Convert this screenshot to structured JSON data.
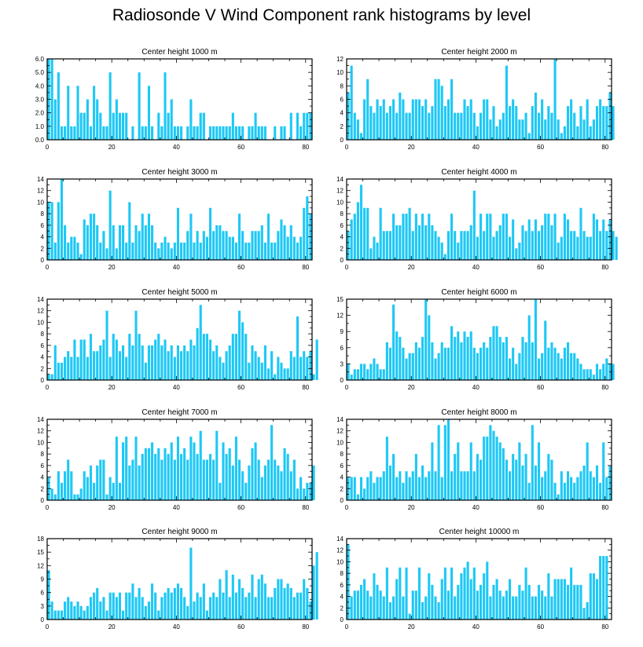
{
  "title": "Radiosonde V Wind Component rank histograms by level",
  "bar_color": "#1ec8f5",
  "chart_data": [
    {
      "type": "bar",
      "title": "Center height 1000 m",
      "xlim": [
        0,
        82
      ],
      "xticks": [
        0,
        20,
        40,
        60,
        80
      ],
      "ylim": [
        0,
        6
      ],
      "yticks": [
        0,
        1,
        2,
        3,
        4,
        5,
        6
      ],
      "ytick_labels": [
        "0.0",
        "1.0",
        "2.0",
        "3.0",
        "4.0",
        "5.0",
        "6.0"
      ],
      "values": [
        6,
        6,
        3,
        5,
        1,
        1,
        4,
        1,
        1,
        4,
        2,
        2,
        3,
        1,
        4,
        3,
        2,
        1,
        1,
        5,
        2,
        3,
        2,
        2,
        2,
        0,
        1,
        0,
        5,
        1,
        1,
        4,
        1,
        0,
        2,
        1,
        5,
        2,
        3,
        1,
        1,
        1,
        0,
        1,
        3,
        1,
        1,
        2,
        2,
        0,
        1,
        1,
        1,
        1,
        1,
        1,
        1,
        2,
        1,
        1,
        1,
        0,
        1,
        1,
        2,
        1,
        1,
        1,
        0,
        0,
        1,
        0,
        1,
        1,
        0,
        2,
        0,
        2,
        1,
        2,
        2,
        2
      ]
    },
    {
      "type": "bar",
      "title": "Center height 2000 m",
      "xlim": [
        0,
        82
      ],
      "xticks": [
        0,
        20,
        40,
        60,
        80
      ],
      "ylim": [
        0,
        12
      ],
      "yticks": [
        0,
        2,
        4,
        6,
        8,
        10,
        12
      ],
      "ytick_labels": [
        "0",
        "2",
        "4",
        "6",
        "8",
        "10",
        "12"
      ],
      "values": [
        7,
        11,
        4,
        3,
        1,
        6,
        9,
        5,
        4,
        6,
        5,
        6,
        4,
        5,
        6,
        4,
        7,
        6,
        4,
        4,
        6,
        6,
        6,
        5,
        6,
        4,
        5,
        9,
        9,
        8,
        5,
        6,
        9,
        4,
        4,
        4,
        6,
        5,
        6,
        4,
        2,
        4,
        6,
        6,
        3,
        5,
        2,
        3,
        4,
        11,
        5,
        6,
        5,
        3,
        3,
        4,
        1,
        5,
        7,
        4,
        6,
        3,
        5,
        4,
        12,
        3,
        1,
        2,
        5,
        6,
        4,
        2,
        5,
        3,
        6,
        2,
        3,
        5,
        6,
        5,
        5,
        7,
        5
      ]
    },
    {
      "type": "bar",
      "title": "Center height 3000 m",
      "xlim": [
        0,
        82
      ],
      "xticks": [
        0,
        20,
        40,
        60,
        80
      ],
      "ylim": [
        0,
        14
      ],
      "yticks": [
        0,
        2,
        4,
        6,
        8,
        10,
        12,
        14
      ],
      "ytick_labels": [
        "0",
        "2",
        "4",
        "6",
        "8",
        "10",
        "12",
        "14"
      ],
      "values": [
        10,
        10,
        3,
        10,
        14,
        6,
        3,
        4,
        4,
        3,
        1,
        7,
        6,
        8,
        8,
        6,
        3,
        5,
        2,
        12,
        6,
        2,
        6,
        6,
        3,
        10,
        3,
        6,
        5,
        8,
        6,
        8,
        6,
        3,
        2,
        3,
        4,
        3,
        2,
        3,
        9,
        3,
        3,
        5,
        8,
        3,
        5,
        3,
        5,
        4,
        9,
        5,
        6,
        6,
        5,
        5,
        4,
        4,
        3,
        8,
        5,
        3,
        3,
        5,
        5,
        5,
        6,
        3,
        8,
        3,
        3,
        5,
        7,
        6,
        4,
        6,
        4,
        3,
        4,
        9,
        11,
        8
      ]
    },
    {
      "type": "bar",
      "title": "Center height 4000 m",
      "xlim": [
        0,
        82
      ],
      "xticks": [
        0,
        20,
        40,
        60,
        80
      ],
      "ylim": [
        0,
        14
      ],
      "yticks": [
        0,
        2,
        4,
        6,
        8,
        10,
        12,
        14
      ],
      "ytick_labels": [
        "0",
        "2",
        "4",
        "6",
        "8",
        "10",
        "12",
        "14"
      ],
      "values": [
        5,
        7,
        8,
        10,
        13,
        9,
        9,
        2,
        4,
        3,
        9,
        5,
        5,
        5,
        8,
        6,
        6,
        8,
        8,
        9,
        5,
        8,
        6,
        8,
        6,
        8,
        6,
        5,
        4,
        3,
        1,
        5,
        8,
        5,
        3,
        5,
        5,
        5,
        6,
        12,
        4,
        8,
        5,
        8,
        8,
        4,
        5,
        6,
        8,
        8,
        4,
        7,
        2,
        3,
        6,
        5,
        7,
        5,
        7,
        5,
        6,
        8,
        8,
        6,
        8,
        3,
        4,
        8,
        7,
        5,
        5,
        4,
        9,
        5,
        4,
        4,
        8,
        7,
        5,
        7,
        5,
        7,
        5,
        4
      ]
    },
    {
      "type": "bar",
      "title": "Center height 5000 m",
      "xlim": [
        0,
        82
      ],
      "xticks": [
        0,
        20,
        40,
        60,
        80
      ],
      "ylim": [
        0,
        14
      ],
      "yticks": [
        0,
        2,
        4,
        6,
        8,
        10,
        12,
        14
      ],
      "ytick_labels": [
        "0",
        "2",
        "4",
        "6",
        "8",
        "10",
        "12",
        "14"
      ],
      "values": [
        1,
        1,
        6,
        3,
        3,
        4,
        5,
        4,
        7,
        4,
        7,
        7,
        4,
        8,
        5,
        5,
        6,
        7,
        12,
        4,
        8,
        7,
        5,
        6,
        4,
        8,
        6,
        12,
        8,
        6,
        3,
        6,
        6,
        7,
        8,
        6,
        7,
        5,
        6,
        4,
        6,
        5,
        6,
        5,
        7,
        6,
        9,
        13,
        8,
        8,
        7,
        5,
        6,
        4,
        3,
        5,
        6,
        8,
        8,
        12,
        10,
        8,
        3,
        6,
        5,
        4,
        3,
        6,
        2,
        5,
        1,
        4,
        3,
        2,
        2,
        5,
        4,
        11,
        4,
        5,
        4,
        5,
        1,
        7
      ]
    },
    {
      "type": "bar",
      "title": "Center height 6000 m",
      "xlim": [
        0,
        82
      ],
      "xticks": [
        0,
        20,
        40,
        60,
        80
      ],
      "ylim": [
        0,
        15
      ],
      "yticks": [
        0,
        3,
        6,
        9,
        12,
        15
      ],
      "ytick_labels": [
        "0",
        "3",
        "6",
        "9",
        "12",
        "15"
      ],
      "values": [
        3,
        1,
        2,
        2,
        3,
        3,
        2,
        3,
        4,
        3,
        2,
        2,
        7,
        6,
        14,
        9,
        8,
        6,
        4,
        5,
        5,
        7,
        6,
        8,
        15,
        12,
        7,
        4,
        5,
        7,
        6,
        6,
        10,
        8,
        9,
        7,
        9,
        8,
        9,
        6,
        5,
        6,
        7,
        6,
        8,
        10,
        10,
        8,
        7,
        8,
        4,
        6,
        3,
        5,
        8,
        7,
        12,
        7,
        15,
        4,
        5,
        11,
        6,
        7,
        6,
        5,
        4,
        6,
        7,
        5,
        5,
        4,
        3,
        2,
        2,
        2,
        1,
        3,
        2,
        3,
        4,
        3,
        3
      ]
    },
    {
      "type": "bar",
      "title": "Center height 7000 m",
      "xlim": [
        0,
        82
      ],
      "xticks": [
        0,
        20,
        40,
        60,
        80
      ],
      "ylim": [
        0,
        14
      ],
      "yticks": [
        0,
        2,
        4,
        6,
        8,
        10,
        12,
        14
      ],
      "ytick_labels": [
        "0",
        "2",
        "4",
        "6",
        "8",
        "10",
        "12",
        "14"
      ],
      "values": [
        4,
        2,
        1,
        5,
        3,
        5,
        7,
        5,
        1,
        1,
        2,
        5,
        4,
        6,
        3,
        6,
        7,
        7,
        1,
        4,
        3,
        11,
        3,
        10,
        11,
        6,
        7,
        11,
        6,
        8,
        9,
        9,
        10,
        8,
        9,
        7,
        9,
        8,
        10,
        7,
        11,
        8,
        9,
        7,
        11,
        10,
        8,
        12,
        7,
        7,
        8,
        7,
        12,
        3,
        10,
        8,
        9,
        6,
        11,
        7,
        5,
        3,
        6,
        9,
        10,
        7,
        4,
        6,
        7,
        13,
        7,
        6,
        5,
        9,
        8,
        5,
        7,
        2,
        4,
        2,
        3,
        3,
        6
      ]
    },
    {
      "type": "bar",
      "title": "Center height 8000 m",
      "xlim": [
        0,
        82
      ],
      "xticks": [
        0,
        20,
        40,
        60,
        80
      ],
      "ylim": [
        0,
        14
      ],
      "yticks": [
        0,
        2,
        4,
        6,
        8,
        10,
        12,
        14
      ],
      "ytick_labels": [
        "0",
        "2",
        "4",
        "6",
        "8",
        "10",
        "12",
        "14"
      ],
      "values": [
        4,
        4,
        4,
        1,
        4,
        2,
        4,
        5,
        3,
        4,
        4,
        5,
        11,
        6,
        8,
        4,
        5,
        3,
        5,
        4,
        5,
        8,
        4,
        6,
        4,
        5,
        10,
        5,
        13,
        4,
        13,
        14,
        5,
        8,
        10,
        5,
        5,
        5,
        10,
        5,
        8,
        7,
        11,
        11,
        13,
        12,
        11,
        10,
        9,
        7,
        5,
        8,
        7,
        10,
        6,
        8,
        3,
        13,
        6,
        10,
        4,
        5,
        8,
        7,
        3,
        1,
        5,
        3,
        5,
        4,
        3,
        4,
        5,
        6,
        10,
        5,
        4,
        6,
        3,
        10,
        4,
        6
      ]
    },
    {
      "type": "bar",
      "title": "Center height 9000 m",
      "xlim": [
        0,
        82
      ],
      "xticks": [
        0,
        20,
        40,
        60,
        80
      ],
      "ylim": [
        0,
        18
      ],
      "yticks": [
        0,
        3,
        6,
        9,
        12,
        15,
        18
      ],
      "ytick_labels": [
        "0",
        "3",
        "6",
        "9",
        "12",
        "15",
        "18"
      ],
      "values": [
        11,
        4,
        2,
        2,
        2,
        4,
        5,
        4,
        3,
        4,
        3,
        2,
        3,
        5,
        6,
        7,
        4,
        5,
        2,
        6,
        6,
        5,
        6,
        2,
        6,
        6,
        8,
        5,
        7,
        5,
        3,
        4,
        8,
        6,
        2,
        5,
        6,
        7,
        6,
        7,
        8,
        7,
        5,
        3,
        16,
        4,
        6,
        5,
        8,
        2,
        5,
        6,
        5,
        9,
        6,
        11,
        5,
        10,
        6,
        9,
        7,
        5,
        6,
        10,
        5,
        9,
        10,
        8,
        5,
        5,
        7,
        9,
        9,
        7,
        8,
        7,
        5,
        6,
        6,
        9,
        7,
        4,
        12,
        15
      ]
    },
    {
      "type": "bar",
      "title": "Center height 10000 m",
      "xlim": [
        0,
        82
      ],
      "xticks": [
        0,
        20,
        40,
        60,
        80
      ],
      "ylim": [
        0,
        14
      ],
      "yticks": [
        0,
        2,
        4,
        6,
        8,
        10,
        12,
        14
      ],
      "ytick_labels": [
        "0",
        "2",
        "4",
        "6",
        "8",
        "10",
        "12",
        "14"
      ],
      "values": [
        13,
        4,
        5,
        5,
        6,
        7,
        5,
        4,
        8,
        6,
        5,
        4,
        9,
        3,
        4,
        7,
        9,
        4,
        9,
        1,
        5,
        5,
        9,
        3,
        4,
        8,
        6,
        4,
        3,
        7,
        9,
        5,
        9,
        4,
        6,
        8,
        9,
        10,
        7,
        9,
        5,
        6,
        8,
        10,
        4,
        6,
        7,
        5,
        4,
        5,
        7,
        4,
        4,
        6,
        5,
        9,
        6,
        4,
        4,
        6,
        5,
        4,
        8,
        4,
        7,
        7,
        7,
        7,
        6,
        9,
        6,
        6,
        6,
        2,
        3,
        8,
        8,
        7,
        11,
        11,
        11
      ]
    }
  ]
}
